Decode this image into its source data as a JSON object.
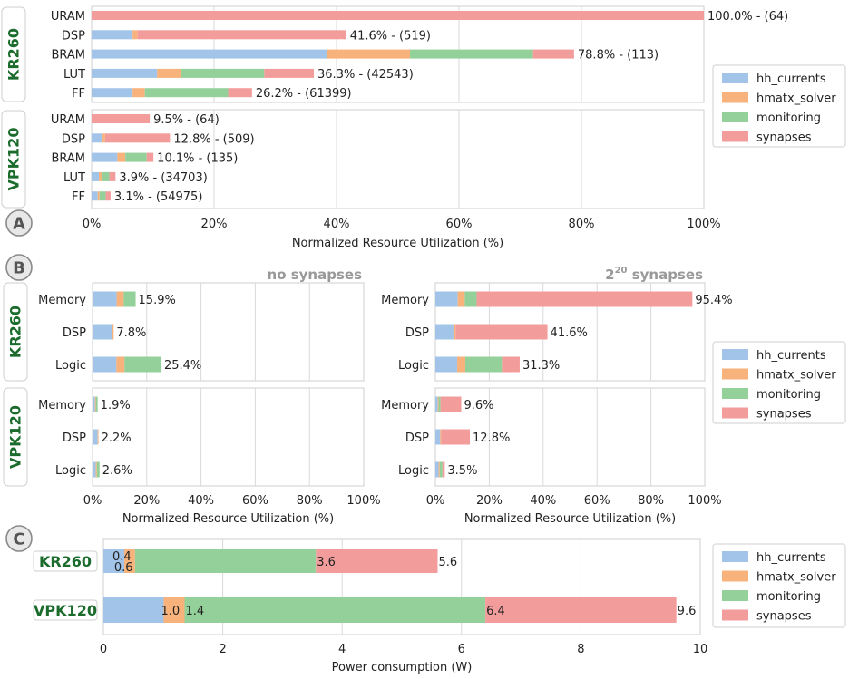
{
  "colors": {
    "hh_currents": "#a1c4e8",
    "hmatx_solver": "#f8b27c",
    "monitoring": "#94d09a",
    "synapses": "#f39c9c",
    "board_label": "#1a6b2c",
    "grid": "#d9d9d9",
    "frame": "#cfcfcf"
  },
  "panel_letters": [
    "A",
    "B",
    "C"
  ],
  "legend": [
    "hh_currents",
    "hmatx_solver",
    "monitoring",
    "synapses"
  ],
  "chart_data": [
    {
      "id": "A",
      "type": "bar",
      "orientation": "horizontal",
      "stacked": true,
      "xlabel": "Normalized Resource Utilization (%)",
      "xlim": [
        0,
        100
      ],
      "xticks": [
        "0%",
        "20%",
        "40%",
        "60%",
        "80%",
        "100%"
      ],
      "series_names": [
        "hh_currents",
        "hmatx_solver",
        "monitoring",
        "synapses"
      ],
      "groups": [
        {
          "board": "KR260",
          "rows": [
            {
              "category": "URAM",
              "values": [
                0,
                0,
                0,
                100.0
              ],
              "label": "100.0% - (64)"
            },
            {
              "category": "DSP",
              "values": [
                6.7,
                0.8,
                0,
                34.1
              ],
              "label": "41.6% - (519)"
            },
            {
              "category": "BRAM",
              "values": [
                38.4,
                13.6,
                20.1,
                6.7
              ],
              "label": "78.8% - (113)"
            },
            {
              "category": "LUT",
              "values": [
                10.7,
                3.9,
                13.6,
                8.1
              ],
              "label": "36.3% - (42543)"
            },
            {
              "category": "FF",
              "values": [
                6.7,
                2.0,
                13.6,
                3.9
              ],
              "label": "26.2% - (61399)"
            }
          ]
        },
        {
          "board": "VPK120",
          "rows": [
            {
              "category": "URAM",
              "values": [
                0,
                0,
                0,
                9.5
              ],
              "label": "9.5% - (64)"
            },
            {
              "category": "DSP",
              "values": [
                1.8,
                0.4,
                0,
                10.6
              ],
              "label": "12.8% - (509)"
            },
            {
              "category": "BRAM",
              "values": [
                4.2,
                1.3,
                3.5,
                1.1
              ],
              "label": "10.1% - (135)"
            },
            {
              "category": "LUT",
              "values": [
                1.2,
                0.5,
                1.2,
                1.0
              ],
              "label": "3.9% - (34703)"
            },
            {
              "category": "FF",
              "values": [
                1.0,
                0.3,
                1.0,
                0.8
              ],
              "label": "3.1% - (54975)"
            }
          ]
        }
      ]
    },
    {
      "id": "B",
      "type": "bar",
      "orientation": "horizontal",
      "stacked": true,
      "xlabel": "Normalized Resource Utilization (%)",
      "xlim": [
        0,
        100
      ],
      "xticks": [
        "0%",
        "20%",
        "40%",
        "60%",
        "80%",
        "100%"
      ],
      "series_names": [
        "hh_currents",
        "hmatx_solver",
        "monitoring",
        "synapses"
      ],
      "subplots": [
        {
          "title": "no synapses",
          "groups": [
            {
              "board": "KR260",
              "rows": [
                {
                  "category": "Memory",
                  "values": [
                    8.9,
                    2.6,
                    4.4,
                    0
                  ],
                  "label": "15.9%"
                },
                {
                  "category": "DSP",
                  "values": [
                    7.3,
                    0.5,
                    0,
                    0
                  ],
                  "label": "7.8%"
                },
                {
                  "category": "Logic",
                  "values": [
                    8.8,
                    3.0,
                    13.6,
                    0
                  ],
                  "label": "25.4%"
                }
              ]
            },
            {
              "board": "VPK120",
              "rows": [
                {
                  "category": "Memory",
                  "values": [
                    0.9,
                    0.3,
                    0.7,
                    0
                  ],
                  "label": "1.9%"
                },
                {
                  "category": "DSP",
                  "values": [
                    1.9,
                    0.3,
                    0,
                    0
                  ],
                  "label": "2.2%"
                },
                {
                  "category": "Logic",
                  "values": [
                    1.2,
                    0.4,
                    1.0,
                    0
                  ],
                  "label": "2.6%"
                }
              ]
            }
          ]
        },
        {
          "title_base": "2",
          "title_sup": "20",
          "title_rest": " synapses",
          "groups": [
            {
              "board": "KR260",
              "rows": [
                {
                  "category": "Memory",
                  "values": [
                    8.3,
                    2.6,
                    4.4,
                    80.1
                  ],
                  "label": "95.4%"
                },
                {
                  "category": "DSP",
                  "values": [
                    6.7,
                    0.8,
                    0,
                    34.1
                  ],
                  "label": "41.6%"
                },
                {
                  "category": "Logic",
                  "values": [
                    8.1,
                    3.0,
                    13.6,
                    6.6
                  ],
                  "label": "31.3%"
                }
              ]
            },
            {
              "board": "VPK120",
              "rows": [
                {
                  "category": "Memory",
                  "values": [
                    0.9,
                    0.3,
                    0.7,
                    7.7
                  ],
                  "label": "9.6%"
                },
                {
                  "category": "DSP",
                  "values": [
                    1.8,
                    0.4,
                    0,
                    10.6
                  ],
                  "label": "12.8%"
                },
                {
                  "category": "Logic",
                  "values": [
                    1.2,
                    0.4,
                    1.0,
                    0.9
                  ],
                  "label": "3.5%"
                }
              ]
            }
          ]
        }
      ]
    },
    {
      "id": "C",
      "type": "bar",
      "orientation": "horizontal",
      "stacked": true,
      "xlabel": "Power consumption (W)",
      "xlim": [
        0,
        10
      ],
      "xticks": [
        "0",
        "2",
        "4",
        "6",
        "8",
        "10"
      ],
      "series_names": [
        "hh_currents",
        "hmatx_solver",
        "monitoring",
        "synapses"
      ],
      "rows": [
        {
          "category": "KR260",
          "values": [
            0.35,
            0.18,
            3.03,
            2.04
          ],
          "annotations": [
            "0.4",
            "0.6",
            "3.6",
            "5.6"
          ]
        },
        {
          "category": "VPK120",
          "values": [
            1.01,
            0.35,
            5.04,
            3.2
          ],
          "annotations": [
            "1.0",
            "1.4",
            "6.4",
            "9.6"
          ]
        }
      ]
    }
  ]
}
